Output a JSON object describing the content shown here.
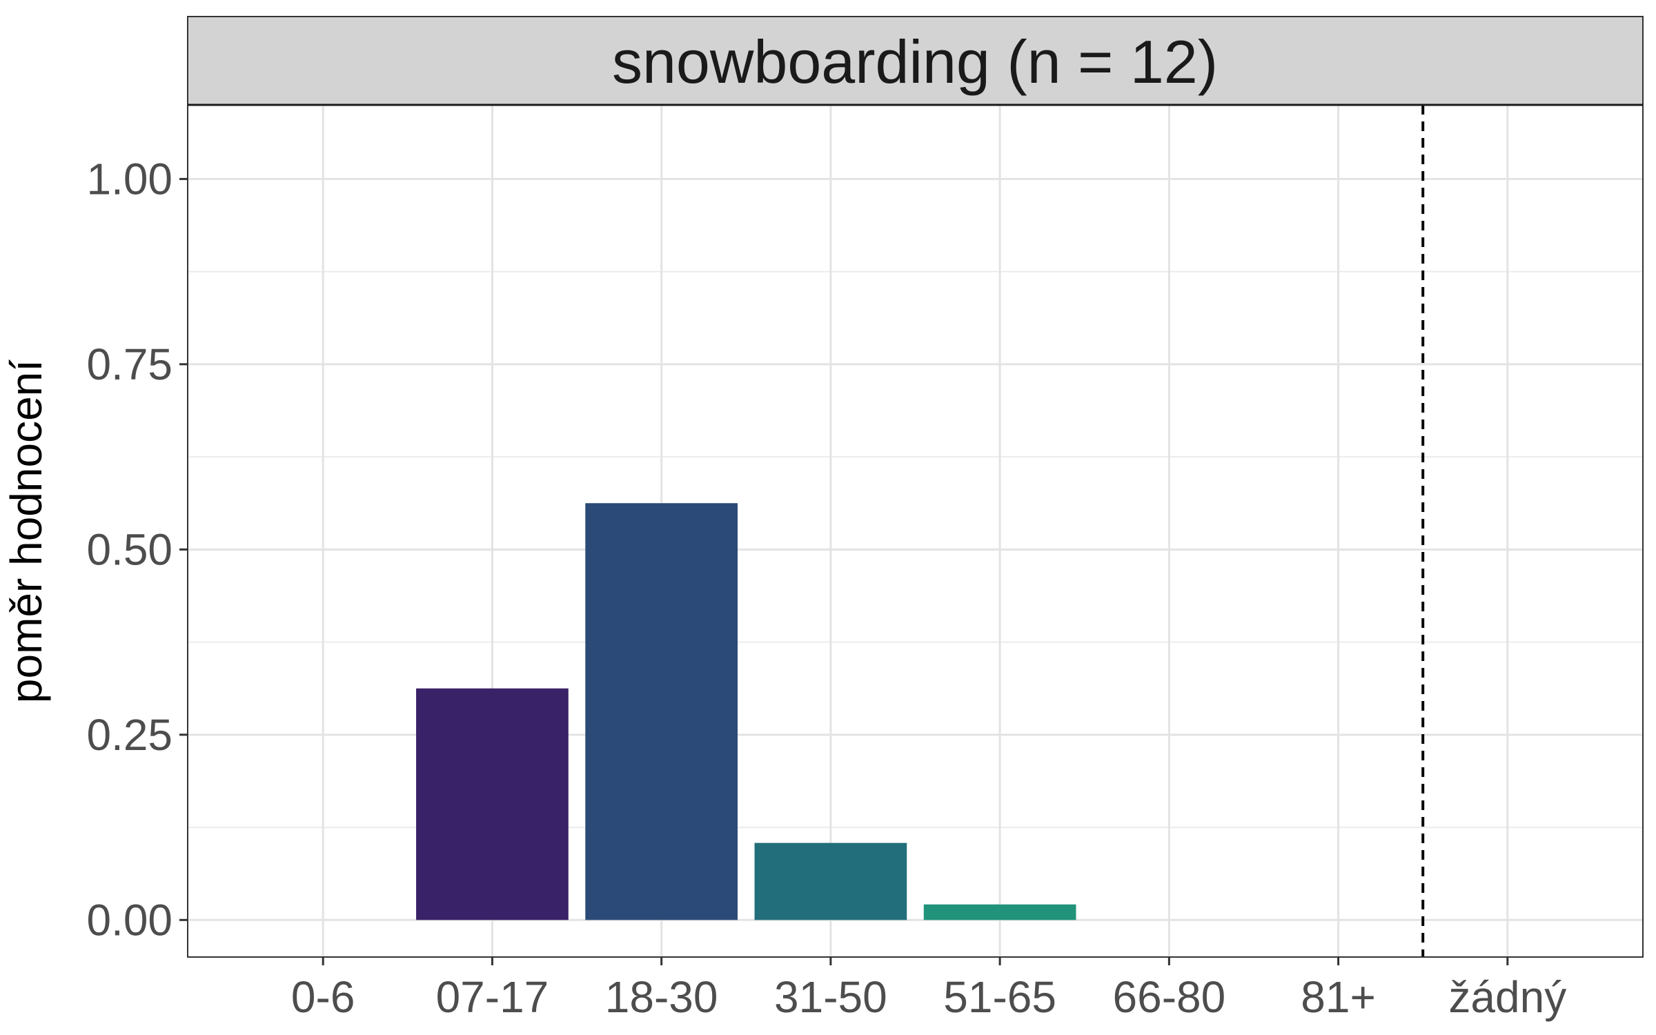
{
  "chart_data": {
    "type": "bar",
    "facet_title": "snowboarding (n = 12)",
    "categories": [
      "0-6",
      "07-17",
      "18-30",
      "31-50",
      "51-65",
      "66-80",
      "81+",
      "žádný"
    ],
    "values": [
      0,
      0.3125,
      0.5625,
      0.104,
      0.021,
      0,
      0,
      0
    ],
    "colors": [
      "#440154",
      "#3A2268",
      "#2C4A77",
      "#226E7A",
      "#21937A",
      "#4FB85F",
      "#9BD93C",
      "#FDE725"
    ],
    "xlabel": "",
    "ylabel": "poměr hodnocení",
    "ylim": [
      -0.05,
      1.1
    ],
    "yticks": [
      0,
      0.25,
      0.5,
      0.75,
      1.0
    ],
    "ytick_labels": [
      "0.00",
      "0.25",
      "0.50",
      "0.75",
      "1.00"
    ],
    "reference_line": {
      "between": [
        "81+",
        "žádný"
      ],
      "style": "dashed"
    },
    "grid": true,
    "legend": "none",
    "panel_background": "#ffffff",
    "strip_background": "#d3d3d3"
  }
}
